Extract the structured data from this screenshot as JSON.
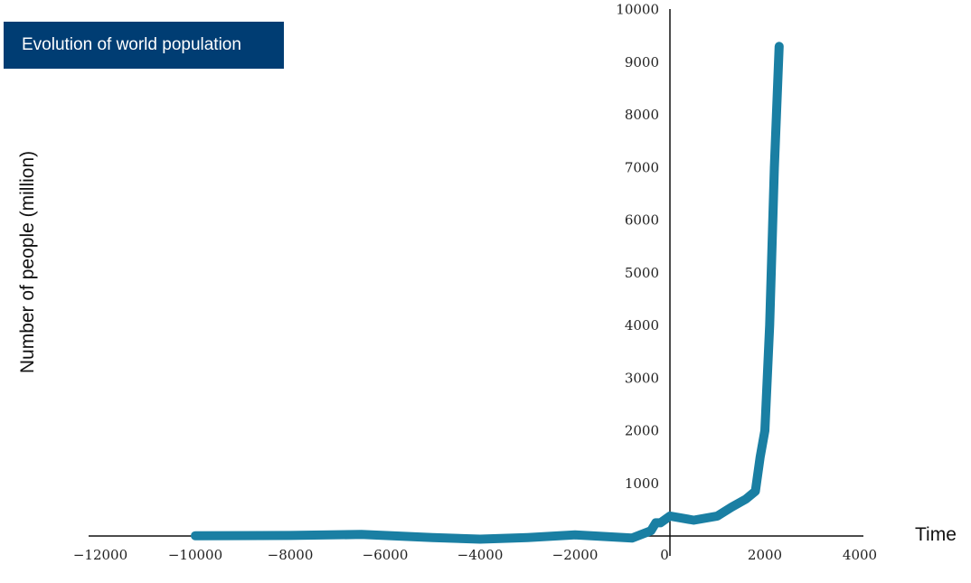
{
  "chart_data": {
    "type": "line",
    "title": "Evolution of world population",
    "xlabel": "Time",
    "ylabel": "Number of people (million)",
    "xlim": [
      -12000,
      4000
    ],
    "ylim": [
      0,
      10000
    ],
    "x_ticks": [
      -12000,
      -10000,
      -8000,
      -6000,
      -4000,
      -2000,
      0,
      2000,
      4000
    ],
    "y_ticks": [
      1000,
      2000,
      3000,
      4000,
      5000,
      6000,
      7000,
      8000,
      9000,
      10000
    ],
    "grid": false,
    "line_color": "#1a7fa3",
    "series": [
      {
        "x": [
          -10000,
          -8000,
          -6500,
          -5000,
          -4000,
          -3000,
          -2000,
          -800,
          -400,
          -300,
          -200,
          0,
          500,
          1000,
          1300,
          1600,
          1800,
          1900,
          2000,
          2100,
          2200,
          2300
        ],
        "y": [
          5,
          10,
          30,
          -30,
          -60,
          -30,
          20,
          -40,
          100,
          250,
          250,
          380,
          300,
          380,
          550,
          700,
          850,
          1500,
          2000,
          4000,
          7000,
          9300
        ]
      }
    ]
  }
}
